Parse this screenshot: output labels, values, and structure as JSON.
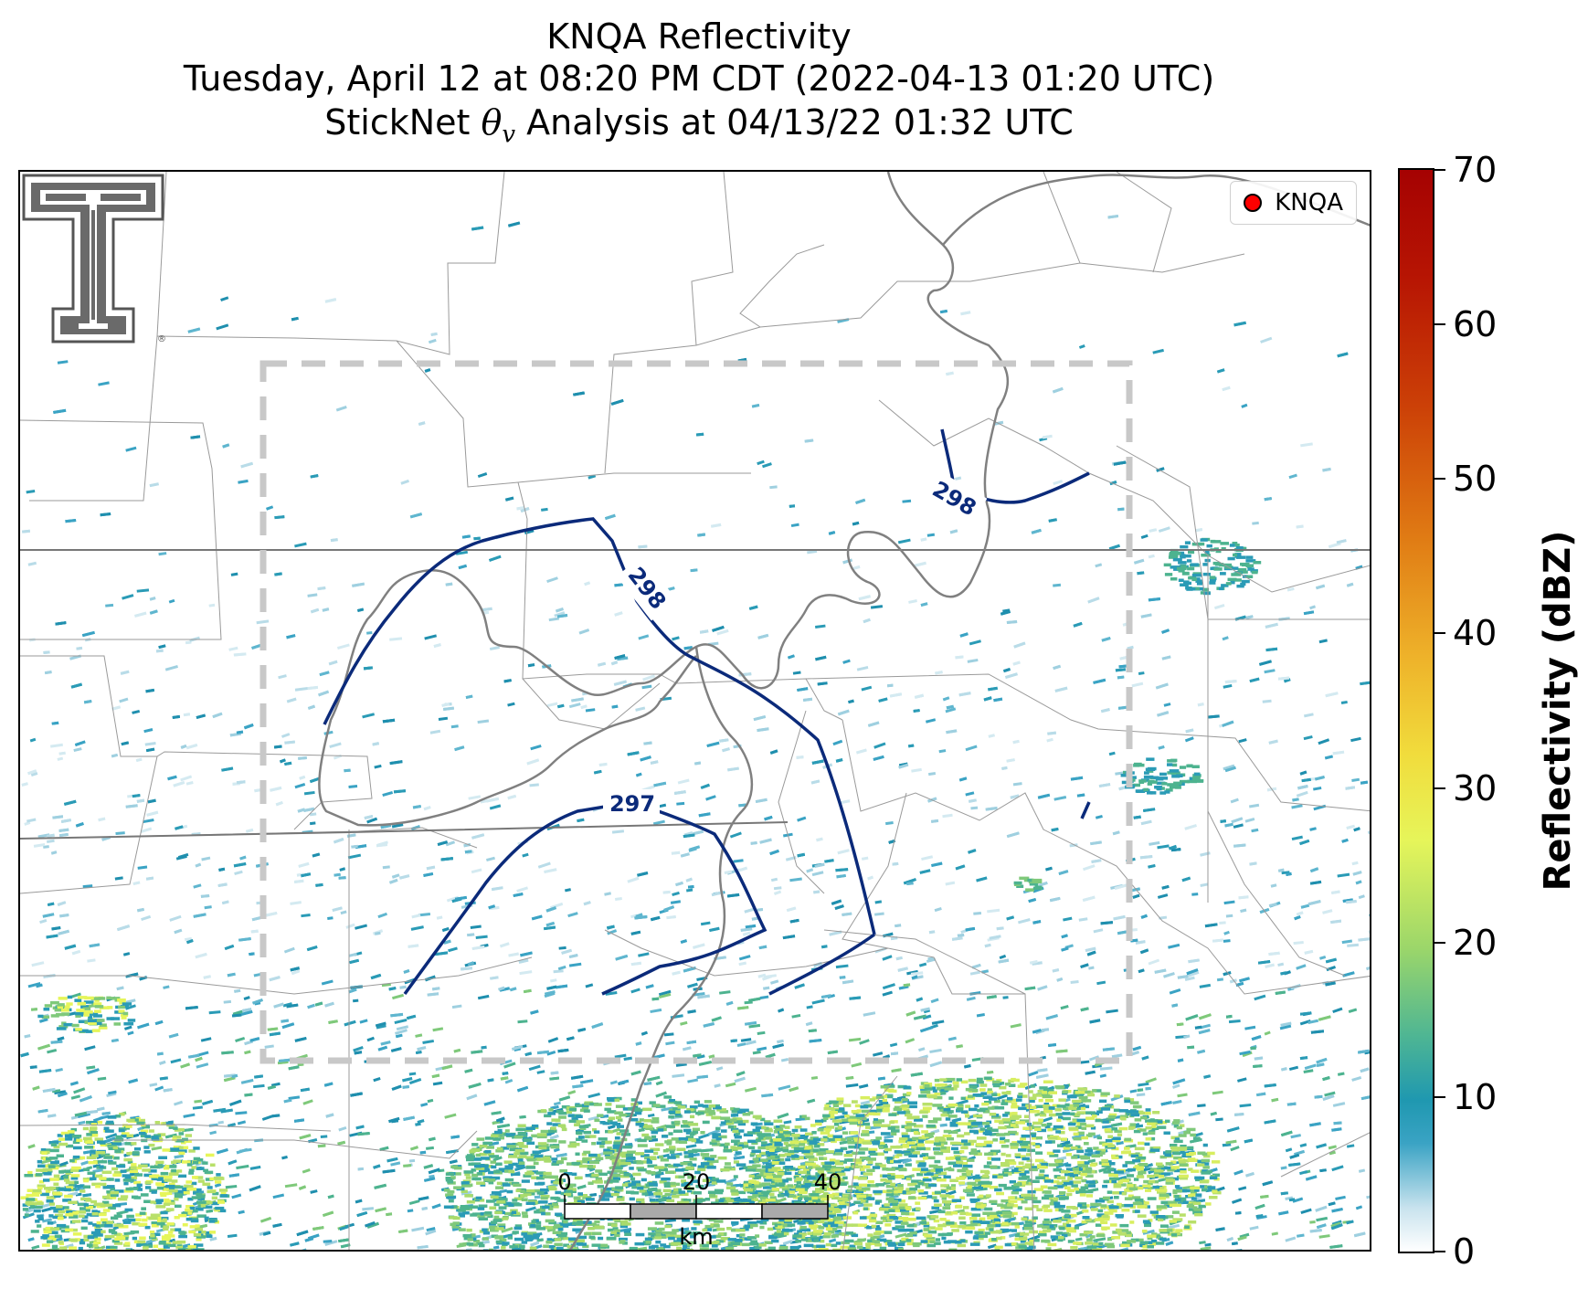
{
  "title": {
    "line1": "KNQA Reflectivity",
    "line2": "Tuesday, April 12 at 08:20 PM CDT (2022-04-13 01:20 UTC)",
    "line3": "StickNet θv Analysis at 04/13/22 01:32 UTC"
  },
  "legend": {
    "label": "KNQA",
    "marker_color": "#ff0000"
  },
  "colorbar": {
    "label": "Reflectivity (dBZ)",
    "ticks": [
      "0",
      "10",
      "20",
      "30",
      "40",
      "50",
      "60",
      "70"
    ],
    "range": [
      0,
      70
    ]
  },
  "contours": {
    "line_color": "#0b2a7a",
    "labels": [
      "298",
      "298",
      "297"
    ]
  },
  "scale_bar": {
    "ticks": [
      "0",
      "20",
      "40"
    ],
    "unit": "km"
  },
  "colors": {
    "dashed_box": "#c8c8c8",
    "state_border": "#777777",
    "county_border": "#9a9a9a",
    "river": "#808080"
  },
  "logo": {
    "name": "Texas Tech Double T"
  }
}
